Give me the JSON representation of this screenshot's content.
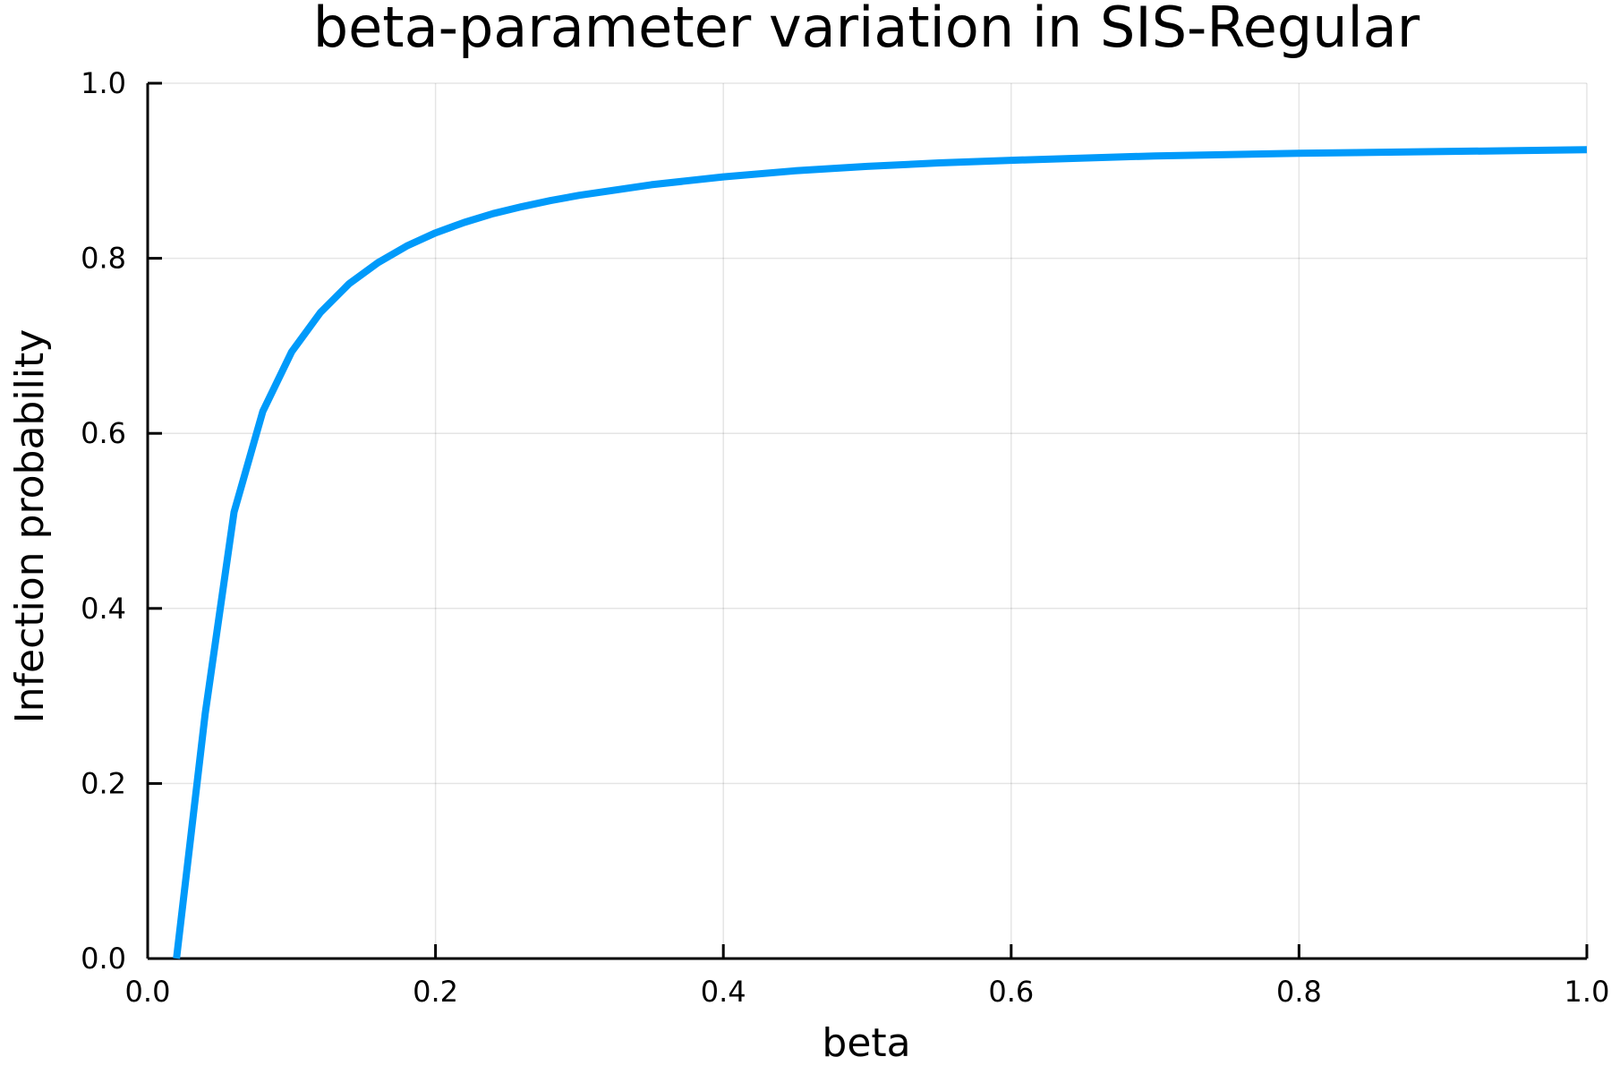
{
  "chart_data": {
    "type": "line",
    "title": "beta-parameter variation in SIS-Regular",
    "xlabel": "beta",
    "ylabel": "Infection probability",
    "xlim": [
      0.0,
      1.0
    ],
    "ylim": [
      0.0,
      1.0
    ],
    "x_ticks": [
      "0.0",
      "0.2",
      "0.4",
      "0.6",
      "0.8",
      "1.0"
    ],
    "y_ticks": [
      "0.0",
      "0.2",
      "0.4",
      "0.6",
      "0.8",
      "1.0"
    ],
    "grid": true,
    "legend": "none",
    "series": [
      {
        "color": "#009AFA",
        "x": [
          0.02,
          0.04,
          0.06,
          0.08,
          0.1,
          0.12,
          0.14,
          0.16,
          0.18,
          0.2,
          0.22,
          0.24,
          0.26,
          0.28,
          0.3,
          0.35,
          0.4,
          0.45,
          0.5,
          0.55,
          0.6,
          0.7,
          0.8,
          0.9,
          1.0
        ],
        "y": [
          0.0,
          0.28,
          0.51,
          0.625,
          0.693,
          0.738,
          0.771,
          0.795,
          0.814,
          0.829,
          0.841,
          0.851,
          0.859,
          0.866,
          0.872,
          0.884,
          0.893,
          0.9,
          0.905,
          0.909,
          0.912,
          0.917,
          0.92,
          0.922,
          0.924
        ]
      }
    ]
  }
}
